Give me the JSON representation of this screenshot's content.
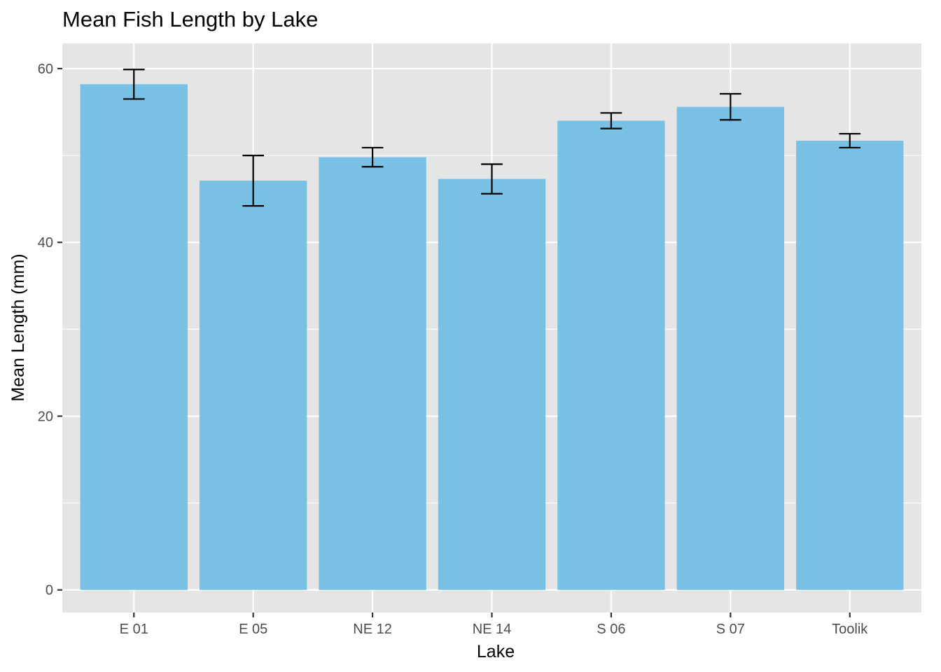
{
  "chart_data": {
    "type": "bar",
    "title": "Mean Fish Length by Lake",
    "xlabel": "Lake",
    "ylabel": "Mean Length (mm)",
    "categories": [
      "E 01",
      "E 05",
      "NE 12",
      "NE 14",
      "S 06",
      "S 07",
      "Toolik"
    ],
    "values": [
      58.2,
      47.1,
      49.8,
      47.3,
      54.0,
      55.6,
      51.7
    ],
    "error_bars": {
      "lower": [
        56.5,
        44.2,
        48.7,
        45.6,
        53.1,
        54.1,
        50.9
      ],
      "upper": [
        59.9,
        50.0,
        50.9,
        49.0,
        54.9,
        57.1,
        52.5
      ]
    },
    "ylim": [
      -2.6,
      62.9
    ],
    "yticks": [
      0,
      20,
      40,
      60
    ],
    "ytick_labels": [
      "0",
      "20",
      "40",
      "60"
    ],
    "grid": true,
    "colors": {
      "bar": "#78c1e4",
      "panel": "#e5e5e5",
      "grid": "#ffffff",
      "error_bar": "#000000"
    }
  }
}
